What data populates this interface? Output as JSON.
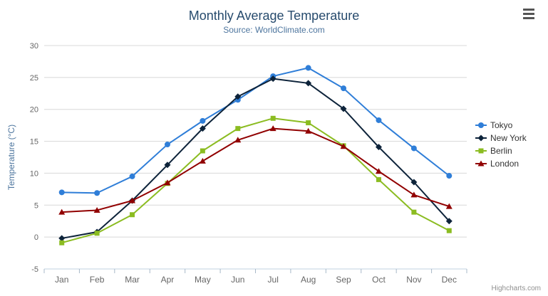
{
  "header": {
    "menu_icon": "hamburger-menu-icon"
  },
  "credits_label": "Highcharts.com",
  "chart_data": {
    "type": "line",
    "title": "Monthly Average Temperature",
    "subtitle": "Source: WorldClimate.com",
    "xlabel": "",
    "ylabel": "Temperature (°C)",
    "ylim": [
      -5,
      30
    ],
    "yticks": [
      -5,
      0,
      5,
      10,
      15,
      20,
      25,
      30
    ],
    "grid": true,
    "legend_position": "right",
    "categories": [
      "Jan",
      "Feb",
      "Mar",
      "Apr",
      "May",
      "Jun",
      "Jul",
      "Aug",
      "Sep",
      "Oct",
      "Nov",
      "Dec"
    ],
    "series": [
      {
        "name": "Tokyo",
        "color": "#2f7ed8",
        "marker": "circle",
        "values": [
          7.0,
          6.9,
          9.5,
          14.5,
          18.2,
          21.5,
          25.2,
          26.5,
          23.3,
          18.3,
          13.9,
          9.6
        ]
      },
      {
        "name": "New York",
        "color": "#0d233a",
        "marker": "diamond",
        "values": [
          -0.2,
          0.8,
          5.7,
          11.3,
          17.0,
          22.0,
          24.8,
          24.1,
          20.1,
          14.1,
          8.6,
          2.5
        ]
      },
      {
        "name": "Berlin",
        "color": "#8bbc21",
        "marker": "square",
        "values": [
          -0.9,
          0.6,
          3.5,
          8.4,
          13.5,
          17.0,
          18.6,
          17.9,
          14.3,
          9.0,
          3.9,
          1.0
        ]
      },
      {
        "name": "London",
        "color": "#910000",
        "marker": "triangle",
        "values": [
          3.9,
          4.2,
          5.7,
          8.5,
          11.9,
          15.2,
          17.0,
          16.6,
          14.2,
          10.3,
          6.6,
          4.8
        ]
      }
    ]
  }
}
